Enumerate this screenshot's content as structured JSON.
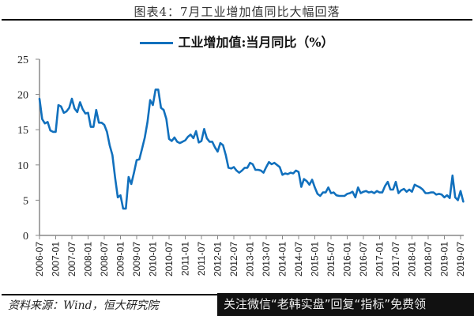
{
  "header": {
    "title": "图表4：7月工业增加值同比大幅回落"
  },
  "legend": {
    "label": "工业增加值:当月同比（%）",
    "color": "#1170bd"
  },
  "footer": {
    "source": "资料来源：Wind，恒大研究院",
    "watermark": "关注微信“老韩实盘”回复“指标”免费领"
  },
  "chart_data": {
    "type": "line",
    "title": "图表4：7月工业增加值同比大幅回落",
    "xlabel": "",
    "ylabel": "",
    "ylim": [
      0,
      25
    ],
    "yticks": [
      0,
      5,
      10,
      15,
      20,
      25
    ],
    "xticks": [
      "2006-07",
      "2007-01",
      "2007-07",
      "2008-01",
      "2008-07",
      "2009-01",
      "2009-07",
      "2010-01",
      "2010-07",
      "2011-01",
      "2011-07",
      "2012-01",
      "2012-07",
      "2013-01",
      "2013-07",
      "2014-01",
      "2014-07",
      "2015-01",
      "2015-07",
      "2016-01",
      "2016-07",
      "2017-01",
      "2017-07",
      "2018-01",
      "2018-07",
      "2019-01",
      "2019-07"
    ],
    "grid": false,
    "legend_position": "top",
    "series": [
      {
        "name": "工业增加值:当月同比（%）",
        "color": "#1170bd",
        "start": "2006-07",
        "frequency": "monthly",
        "values": [
          19.4,
          16.5,
          15.9,
          16.1,
          14.9,
          14.7,
          14.7,
          18.5,
          18.3,
          17.4,
          17.6,
          18.1,
          19.4,
          18.0,
          17.5,
          18.9,
          17.9,
          17.3,
          17.4,
          15.4,
          15.4,
          17.8,
          16.0,
          16.0,
          15.7,
          14.7,
          12.8,
          11.4,
          8.2,
          5.4,
          5.7,
          3.8,
          3.8,
          8.3,
          7.3,
          8.9,
          10.7,
          10.8,
          12.3,
          13.9,
          16.1,
          19.2,
          18.5,
          20.7,
          20.7,
          18.1,
          17.8,
          16.5,
          13.7,
          13.4,
          13.9,
          13.3,
          13.1,
          13.3,
          13.5,
          14.0,
          14.3,
          13.8,
          14.8,
          13.2,
          13.4,
          15.1,
          13.8,
          13.3,
          13.3,
          12.5,
          11.9,
          13.1,
          12.8,
          11.4,
          9.6,
          9.5,
          9.7,
          9.2,
          8.9,
          9.2,
          9.6,
          9.6,
          10.3,
          10.1,
          9.3,
          9.3,
          9.2,
          8.9,
          9.7,
          10.4,
          10.1,
          10.3,
          10.0,
          9.7,
          8.6,
          8.8,
          8.7,
          8.9,
          8.8,
          9.2,
          9.0,
          6.9,
          8.0,
          7.7,
          7.2,
          7.9,
          6.8,
          5.9,
          5.6,
          6.1,
          6.1,
          6.8,
          6.0,
          6.1,
          5.7,
          5.6,
          5.6,
          5.6,
          5.9,
          6.0,
          6.2,
          5.4,
          6.8,
          6.0,
          6.2,
          6.3,
          6.1,
          6.2,
          6.0,
          6.3,
          6.1,
          6.1,
          7.0,
          7.6,
          6.5,
          6.5,
          7.6,
          6.0,
          6.4,
          6.6,
          6.2,
          6.5,
          6.2,
          7.2,
          7.0,
          6.8,
          6.5,
          6.0,
          6.0,
          6.1,
          6.1,
          5.8,
          5.9,
          5.8,
          5.4,
          5.7,
          5.3,
          8.5,
          5.4,
          5.0,
          6.3,
          4.8
        ]
      }
    ]
  }
}
